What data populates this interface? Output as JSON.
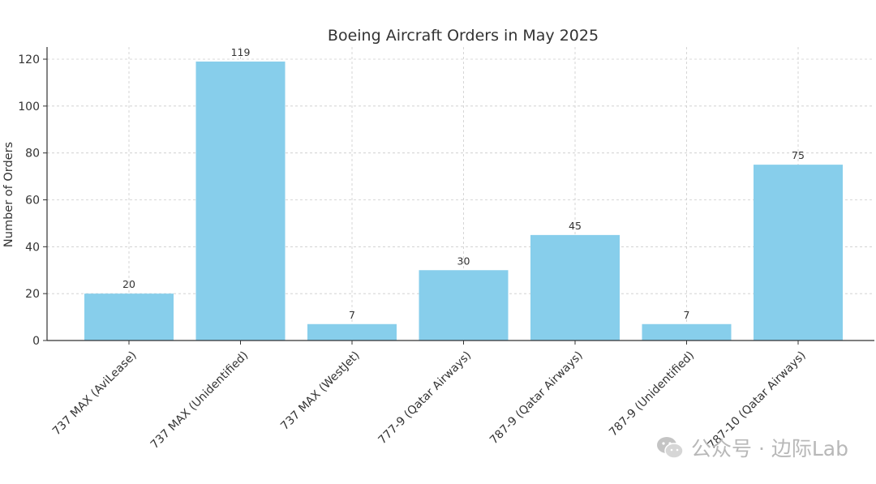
{
  "chart_data": {
    "type": "bar",
    "title": "Boeing Aircraft Orders in May 2025",
    "xlabel": "",
    "ylabel": "Number of Orders",
    "categories": [
      "737 MAX (AviLease)",
      "737 MAX (Unidentified)",
      "737 MAX (WestJet)",
      "777-9 (Qatar Airways)",
      "787-9 (Qatar Airways)",
      "787-9 (Unidentified)",
      "787-10 (Qatar Airways)"
    ],
    "values": [
      20,
      119,
      7,
      30,
      45,
      7,
      75
    ],
    "ylim": [
      0,
      120
    ],
    "yticks": [
      0,
      20,
      40,
      60,
      80,
      100,
      120
    ],
    "grid": true,
    "data_labels": true,
    "bar_color": "#87ceeb",
    "grid_color": "#cccccc",
    "axis_color": "#333333"
  },
  "watermark": {
    "icon": "wechat-icon",
    "text": "公众号 · 边际Lab"
  }
}
